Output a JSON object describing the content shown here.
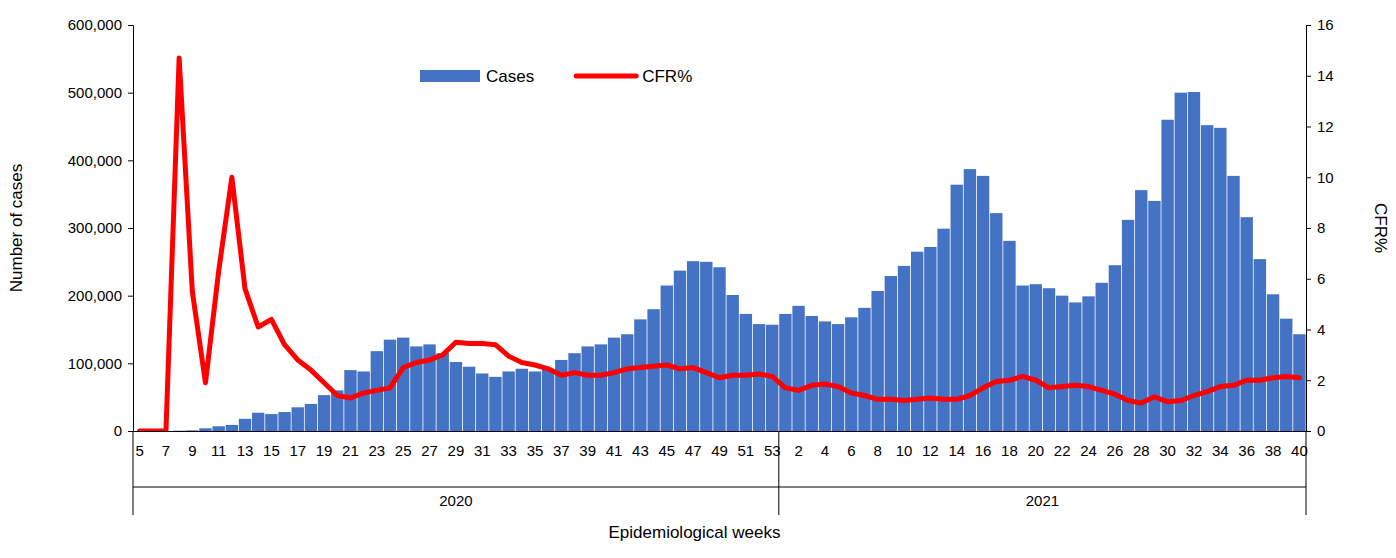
{
  "chart_data": {
    "type": "bar",
    "x_label": "Epidemiological weeks",
    "y_label": "Number of cases",
    "y2_label": "CFR%",
    "categories": [
      "5",
      null,
      "7",
      null,
      "9",
      null,
      "11",
      null,
      "13",
      null,
      "15",
      null,
      "17",
      null,
      "19",
      null,
      "21",
      null,
      "23",
      null,
      "25",
      null,
      "27",
      null,
      "29",
      null,
      "31",
      null,
      "33",
      null,
      "35",
      null,
      "37",
      null,
      "39",
      null,
      "41",
      null,
      "43",
      null,
      "45",
      null,
      "47",
      null,
      "49",
      null,
      "51",
      null,
      "53",
      null,
      "2",
      null,
      "4",
      null,
      "6",
      null,
      "8",
      null,
      "10",
      null,
      "12",
      null,
      "14",
      null,
      "16",
      null,
      "18",
      null,
      "20",
      null,
      "22",
      null,
      "24",
      null,
      "26",
      null,
      "28",
      null,
      "30",
      null,
      "32",
      null,
      "34",
      null,
      "36",
      null,
      "38",
      null,
      "40"
    ],
    "groups": [
      {
        "label": "2020",
        "count": 49
      },
      {
        "label": "2021",
        "count": 40
      }
    ],
    "series": [
      {
        "name": "Cases",
        "type": "bar",
        "color": "#4472c4",
        "values": [
          0,
          0,
          0,
          500,
          1000,
          4000,
          7000,
          9000,
          18000,
          27000,
          25000,
          28000,
          35000,
          40000,
          53000,
          60000,
          90000,
          88000,
          118000,
          135000,
          138000,
          125000,
          128000,
          115000,
          102000,
          95000,
          85000,
          80000,
          88000,
          92000,
          88000,
          92000,
          105000,
          115000,
          125000,
          128000,
          138000,
          143000,
          165000,
          180000,
          215000,
          237000,
          251000,
          250000,
          242000,
          201000,
          173000,
          158000,
          157000,
          173000,
          185000,
          170000,
          162000,
          158000,
          168000,
          182000,
          207000,
          229000,
          244000,
          265000,
          272000,
          299000,
          364000,
          387000,
          377000,
          322000,
          281000,
          215000,
          217000,
          211000,
          200000,
          190000,
          199000,
          219000,
          245000,
          312000,
          356000,
          340000,
          460000,
          500000,
          501000,
          452000,
          448000,
          377000,
          316000,
          254000,
          202000,
          166000,
          143000
        ]
      },
      {
        "name": "CFR%",
        "type": "line",
        "axis": "y2",
        "color": "#ff0000",
        "line_style": "solid",
        "values": [
          0,
          0,
          0,
          14.7,
          5.5,
          1.9,
          6.3,
          10,
          5.6,
          4.1,
          4.4,
          3.4,
          2.8,
          2.4,
          1.9,
          1.4,
          1.3,
          1.5,
          1.6,
          1.7,
          2.5,
          2.7,
          2.8,
          3,
          3.5,
          3.45,
          3.45,
          3.4,
          2.95,
          2.7,
          2.6,
          2.45,
          2.2,
          2.3,
          2.2,
          2.2,
          2.3,
          2.45,
          2.5,
          2.55,
          2.6,
          2.45,
          2.5,
          2.3,
          2.1,
          2.2,
          2.2,
          2.25,
          2.15,
          1.7,
          1.6,
          1.8,
          1.85,
          1.75,
          1.5,
          1.4,
          1.25,
          1.25,
          1.2,
          1.25,
          1.3,
          1.25,
          1.25,
          1.4,
          1.7,
          1.95,
          2,
          2.15,
          2,
          1.7,
          1.75,
          1.8,
          1.75,
          1.6,
          1.45,
          1.2,
          1.1,
          1.35,
          1.15,
          1.2,
          1.4,
          1.55,
          1.75,
          1.8,
          2,
          2,
          2.1,
          2.15,
          2.1
        ]
      }
    ],
    "ylim": [
      0,
      600000
    ],
    "yticks": [
      0,
      {
        "value": 100000,
        "label": "100,000"
      },
      {
        "value": 200000,
        "label": "200,000"
      },
      {
        "value": 300000,
        "label": "300,000"
      },
      {
        "value": 400000,
        "label": "400,000"
      },
      {
        "value": 500000,
        "label": "500,000"
      },
      {
        "value": 600000,
        "label": "600,000"
      }
    ],
    "y2lim": [
      0,
      16
    ],
    "y2ticks": [
      0,
      2,
      4,
      6,
      8,
      10,
      12,
      14,
      16
    ],
    "grid": false,
    "legend": "top"
  }
}
